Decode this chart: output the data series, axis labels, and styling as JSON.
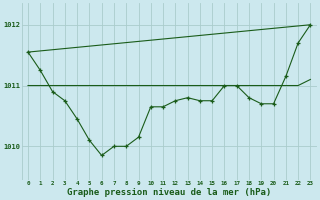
{
  "bg_color": "#cce8ee",
  "grid_color_major": "#aacccc",
  "grid_color_minor": "#bbdddd",
  "line_color": "#1a5c1a",
  "xlabel": "Graphe pression niveau de la mer (hPa)",
  "xlabel_fontsize": 6.5,
  "ylabel_ticks": [
    1010,
    1011,
    1012
  ],
  "xlim": [
    -0.5,
    23.5
  ],
  "ylim": [
    1009.45,
    1012.35
  ],
  "xticks": [
    0,
    1,
    2,
    3,
    4,
    5,
    6,
    7,
    8,
    9,
    10,
    11,
    12,
    13,
    14,
    15,
    16,
    17,
    18,
    19,
    20,
    21,
    22,
    23
  ],
  "series": [
    {
      "x": [
        0,
        1,
        2,
        3,
        4,
        5,
        6,
        7,
        8,
        9,
        10,
        11,
        12,
        13,
        14,
        15,
        16,
        17,
        18,
        19,
        20,
        21,
        22,
        23
      ],
      "y": [
        1011.55,
        1011.25,
        1010.9,
        1010.75,
        1010.45,
        1010.1,
        1009.85,
        1010.0,
        1010.0,
        1010.15,
        1010.65,
        1010.65,
        1010.75,
        1010.8,
        1010.75,
        1010.75,
        1011.0,
        1011.0,
        1010.8,
        1010.7,
        1010.7,
        1011.15,
        1011.7,
        1012.0
      ],
      "has_markers": true
    },
    {
      "x": [
        0,
        23
      ],
      "y": [
        1011.55,
        1012.0
      ],
      "has_markers": false
    },
    {
      "x": [
        0,
        3,
        10,
        15,
        19,
        22,
        23
      ],
      "y": [
        1011.0,
        1011.0,
        1011.0,
        1011.0,
        1011.0,
        1011.0,
        1011.1
      ],
      "has_markers": false
    }
  ]
}
